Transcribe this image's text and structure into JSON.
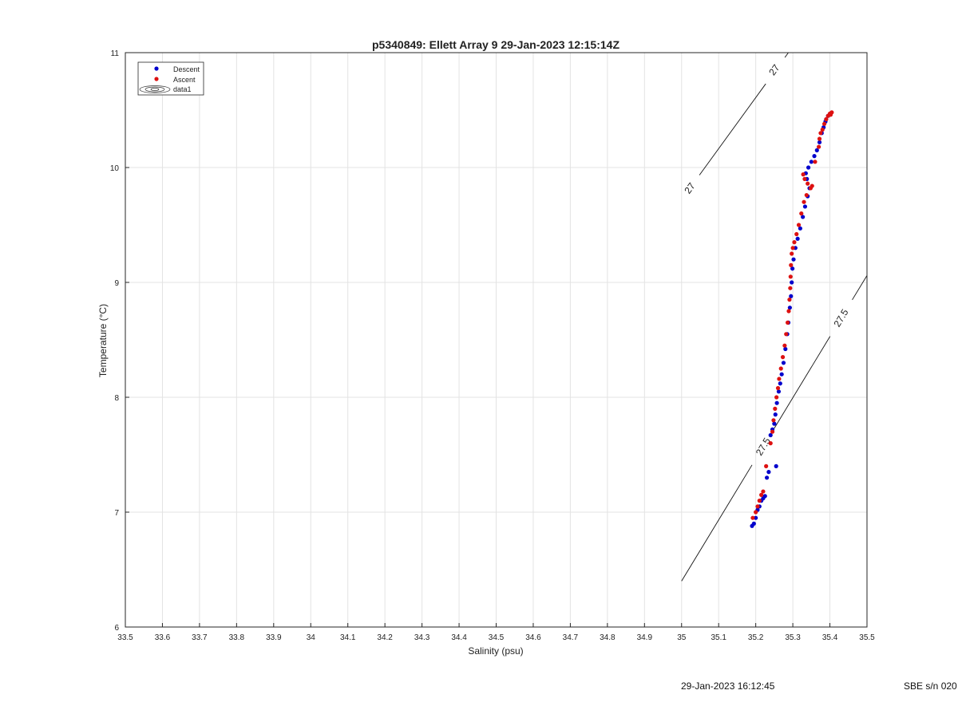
{
  "chart_data": {
    "type": "scatter",
    "title": "p5340849: Ellett Array 9 29-Jan-2023 12:15:14Z",
    "xlabel": "Salinity (psu)",
    "ylabel": "Temperature (°C)",
    "xlim": [
      33.5,
      35.5
    ],
    "ylim": [
      6,
      11
    ],
    "x_ticks": [
      "33.5",
      "33.6",
      "33.7",
      "33.8",
      "33.9",
      "34",
      "34.1",
      "34.2",
      "34.3",
      "34.4",
      "34.5",
      "34.6",
      "34.7",
      "34.8",
      "34.9",
      "35",
      "35.1",
      "35.2",
      "35.3",
      "35.4",
      "35.5"
    ],
    "y_ticks": [
      "6",
      "7",
      "8",
      "9",
      "10",
      "11"
    ],
    "grid": true,
    "legend_position": "top-left",
    "legend": [
      "Descent",
      "Ascent",
      "data1"
    ],
    "contours": [
      {
        "label": "27",
        "points": [
          [
            35.0,
            9.72
          ],
          [
            35.288,
            11.0
          ]
        ],
        "label_positions": [
          [
            35.022,
            9.82
          ],
          [
            35.25,
            10.85
          ]
        ]
      },
      {
        "label": "27.5",
        "points": [
          [
            35.0,
            6.4
          ],
          [
            35.5,
            9.06
          ]
        ],
        "label_positions": [
          [
            35.22,
            7.57
          ],
          [
            35.43,
            8.69
          ]
        ]
      }
    ],
    "series": [
      {
        "name": "Descent",
        "color": "#0000cc",
        "points": [
          [
            35.19,
            6.88
          ],
          [
            35.195,
            6.9
          ],
          [
            35.2,
            6.95
          ],
          [
            35.205,
            7.02
          ],
          [
            35.21,
            7.05
          ],
          [
            35.215,
            7.1
          ],
          [
            35.22,
            7.12
          ],
          [
            35.225,
            7.14
          ],
          [
            35.23,
            7.3
          ],
          [
            35.235,
            7.35
          ],
          [
            35.255,
            7.4
          ],
          [
            35.24,
            7.67
          ],
          [
            35.245,
            7.72
          ],
          [
            35.25,
            7.77
          ],
          [
            35.253,
            7.85
          ],
          [
            35.257,
            7.95
          ],
          [
            35.262,
            8.05
          ],
          [
            35.266,
            8.12
          ],
          [
            35.27,
            8.2
          ],
          [
            35.275,
            8.3
          ],
          [
            35.28,
            8.42
          ],
          [
            35.285,
            8.55
          ],
          [
            35.288,
            8.65
          ],
          [
            35.292,
            8.78
          ],
          [
            35.295,
            8.88
          ],
          [
            35.297,
            9.0
          ],
          [
            35.299,
            9.12
          ],
          [
            35.302,
            9.2
          ],
          [
            35.307,
            9.3
          ],
          [
            35.313,
            9.38
          ],
          [
            35.32,
            9.47
          ],
          [
            35.327,
            9.57
          ],
          [
            35.333,
            9.66
          ],
          [
            35.34,
            9.75
          ],
          [
            35.345,
            9.82
          ],
          [
            35.338,
            9.9
          ],
          [
            35.335,
            9.95
          ],
          [
            35.342,
            10.0
          ],
          [
            35.35,
            10.05
          ],
          [
            35.358,
            10.1
          ],
          [
            35.365,
            10.15
          ],
          [
            35.372,
            10.22
          ],
          [
            35.378,
            10.3
          ],
          [
            35.383,
            10.35
          ],
          [
            35.388,
            10.4
          ],
          [
            35.39,
            10.42
          ],
          [
            35.395,
            10.45
          ]
        ]
      },
      {
        "name": "Ascent",
        "color": "#dd1111",
        "points": [
          [
            35.192,
            6.95
          ],
          [
            35.2,
            7.0
          ],
          [
            35.205,
            7.05
          ],
          [
            35.21,
            7.1
          ],
          [
            35.215,
            7.15
          ],
          [
            35.22,
            7.18
          ],
          [
            35.228,
            7.4
          ],
          [
            35.24,
            7.6
          ],
          [
            35.245,
            7.7
          ],
          [
            35.248,
            7.8
          ],
          [
            35.252,
            7.9
          ],
          [
            35.256,
            8.0
          ],
          [
            35.26,
            8.08
          ],
          [
            35.263,
            8.16
          ],
          [
            35.268,
            8.25
          ],
          [
            35.273,
            8.35
          ],
          [
            35.278,
            8.45
          ],
          [
            35.282,
            8.55
          ],
          [
            35.286,
            8.65
          ],
          [
            35.289,
            8.75
          ],
          [
            35.291,
            8.85
          ],
          [
            35.293,
            8.95
          ],
          [
            35.294,
            9.05
          ],
          [
            35.295,
            9.15
          ],
          [
            35.297,
            9.25
          ],
          [
            35.3,
            9.3
          ],
          [
            35.304,
            9.35
          ],
          [
            35.31,
            9.42
          ],
          [
            35.316,
            9.5
          ],
          [
            35.323,
            9.6
          ],
          [
            35.33,
            9.7
          ],
          [
            35.337,
            9.76
          ],
          [
            35.348,
            9.82
          ],
          [
            35.352,
            9.84
          ],
          [
            35.34,
            9.86
          ],
          [
            35.332,
            9.9
          ],
          [
            35.328,
            9.94
          ],
          [
            35.36,
            10.05
          ],
          [
            35.37,
            10.18
          ],
          [
            35.372,
            10.25
          ],
          [
            35.375,
            10.3
          ],
          [
            35.38,
            10.33
          ],
          [
            35.385,
            10.38
          ],
          [
            35.39,
            10.42
          ],
          [
            35.395,
            10.45
          ],
          [
            35.4,
            10.47
          ],
          [
            35.405,
            10.48
          ],
          [
            35.402,
            10.46
          ]
        ]
      }
    ]
  },
  "footer": {
    "timestamp": "29-Jan-2023 16:12:45",
    "instrument": "SBE s/n 020"
  }
}
